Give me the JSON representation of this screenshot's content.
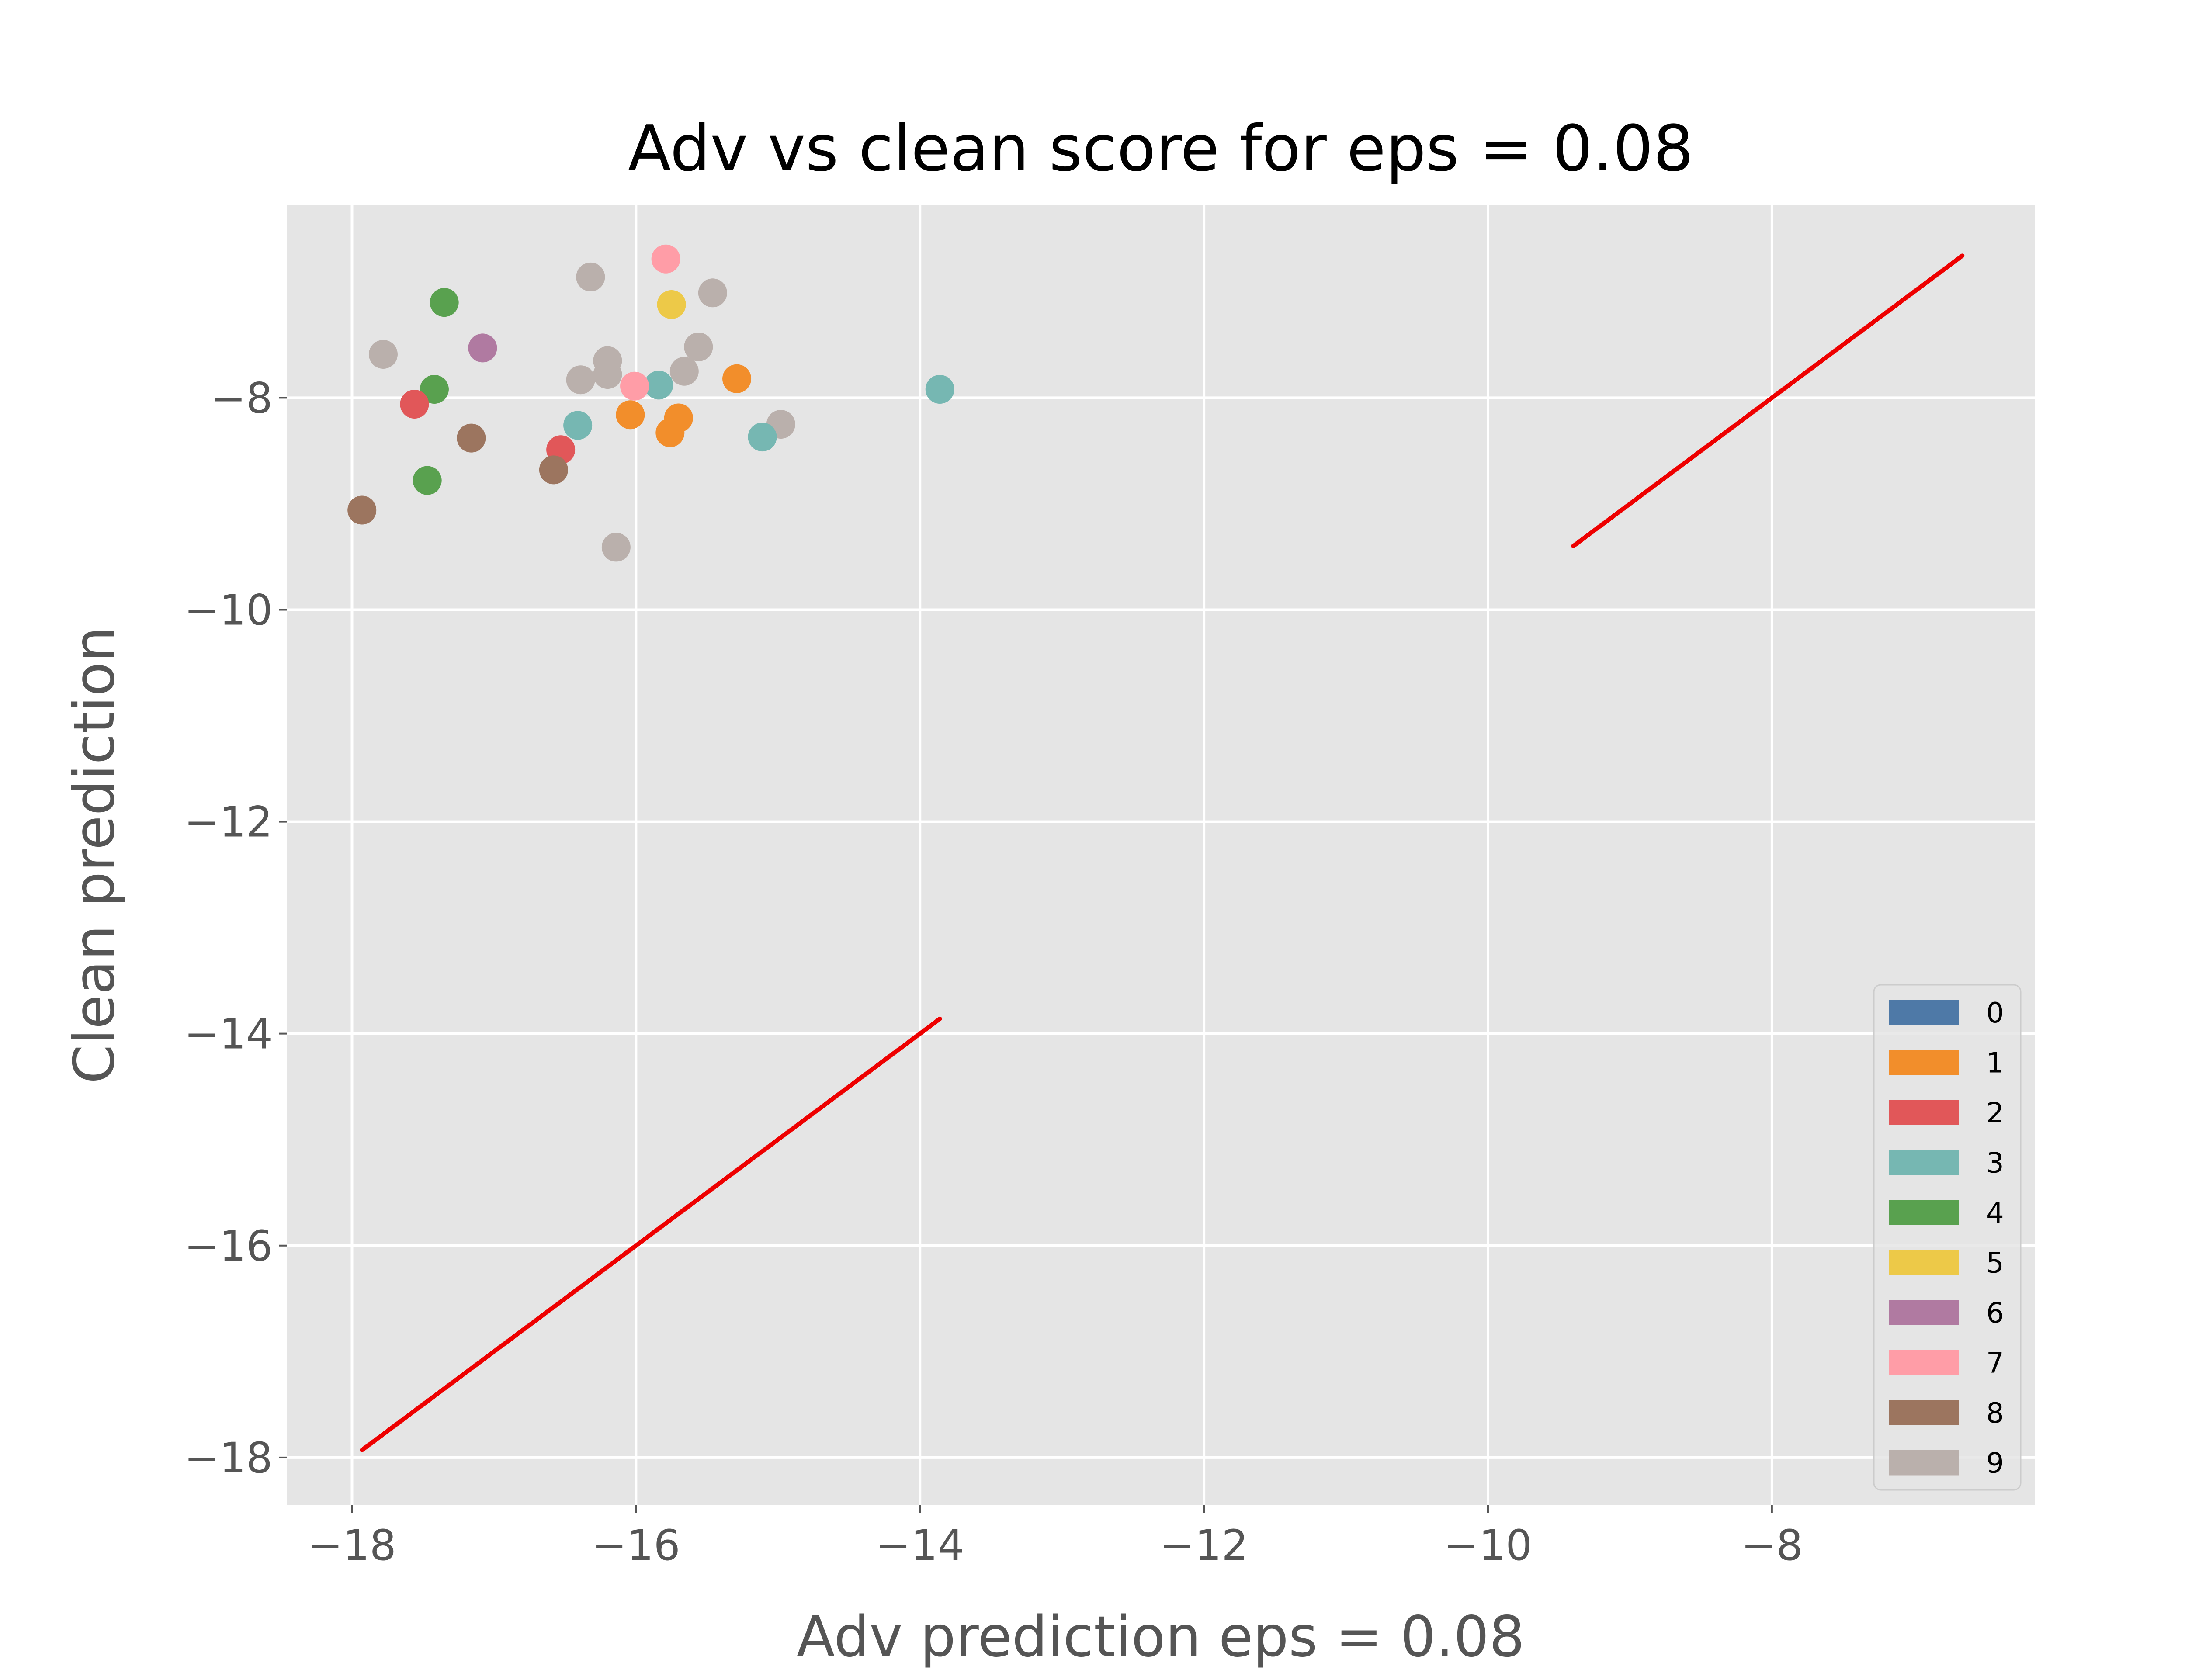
{
  "chart_data": {
    "type": "scatter",
    "title": "Adv vs clean score for eps = 0.08",
    "xlabel": "Adv prediction eps = 0.08",
    "ylabel": "Clean prediction",
    "xlim": [
      -18.46,
      -6.15
    ],
    "ylim": [
      -18.45,
      -6.18
    ],
    "xticks": [
      -18,
      -16,
      -14,
      -12,
      -10,
      -8
    ],
    "yticks": [
      -18,
      -16,
      -14,
      -12,
      -10,
      -8
    ],
    "xtick_labels": [
      "−18",
      "−16",
      "−14",
      "−12",
      "−10",
      "−8"
    ],
    "ytick_labels": [
      "−18",
      "−16",
      "−14",
      "−12",
      "−10",
      "−8"
    ],
    "grid": true,
    "background": "#e5e5e5",
    "legend_position": "lower right",
    "legend": [
      {
        "label": "0",
        "color": "#4e79a7"
      },
      {
        "label": "1",
        "color": "#f28e2b"
      },
      {
        "label": "2",
        "color": "#e15759"
      },
      {
        "label": "3",
        "color": "#76b7b2"
      },
      {
        "label": "4",
        "color": "#59a14f"
      },
      {
        "label": "5",
        "color": "#edc948"
      },
      {
        "label": "6",
        "color": "#b07aa1"
      },
      {
        "label": "7",
        "color": "#ff9da7"
      },
      {
        "label": "8",
        "color": "#9c755f"
      },
      {
        "label": "9",
        "color": "#bab0ac"
      }
    ],
    "lines": [
      {
        "color": "#ee0000",
        "points": [
          [
            -17.93,
            -17.93
          ],
          [
            -13.86,
            -13.86
          ]
        ]
      },
      {
        "color": "#ee0000",
        "points": [
          [
            -9.4,
            -9.4
          ],
          [
            -6.66,
            -6.66
          ]
        ]
      }
    ],
    "points": [
      {
        "x": -15.79,
        "y": -6.69,
        "class": "7"
      },
      {
        "x": -16.32,
        "y": -6.86,
        "class": "9"
      },
      {
        "x": -15.46,
        "y": -7.01,
        "class": "9"
      },
      {
        "x": -17.35,
        "y": -7.1,
        "class": "4"
      },
      {
        "x": -15.75,
        "y": -7.12,
        "class": "5"
      },
      {
        "x": -17.08,
        "y": -7.53,
        "class": "6"
      },
      {
        "x": -17.78,
        "y": -7.59,
        "class": "9"
      },
      {
        "x": -15.56,
        "y": -7.52,
        "class": "9"
      },
      {
        "x": -16.2,
        "y": -7.65,
        "class": "9"
      },
      {
        "x": -16.2,
        "y": -7.78,
        "class": "9"
      },
      {
        "x": -15.66,
        "y": -7.75,
        "class": "9"
      },
      {
        "x": -16.39,
        "y": -7.83,
        "class": "9"
      },
      {
        "x": -15.84,
        "y": -7.88,
        "class": "3"
      },
      {
        "x": -16.01,
        "y": -7.89,
        "class": "7"
      },
      {
        "x": -15.29,
        "y": -7.82,
        "class": "1"
      },
      {
        "x": -17.42,
        "y": -7.92,
        "class": "4"
      },
      {
        "x": -13.86,
        "y": -7.92,
        "class": "3"
      },
      {
        "x": -17.56,
        "y": -8.06,
        "class": "2"
      },
      {
        "x": -16.04,
        "y": -8.16,
        "class": "1"
      },
      {
        "x": -15.7,
        "y": -8.19,
        "class": "1"
      },
      {
        "x": -16.41,
        "y": -8.26,
        "class": "3"
      },
      {
        "x": -14.98,
        "y": -8.25,
        "class": "9"
      },
      {
        "x": -15.76,
        "y": -8.33,
        "class": "1"
      },
      {
        "x": -15.11,
        "y": -8.37,
        "class": "3"
      },
      {
        "x": -17.16,
        "y": -8.38,
        "class": "8"
      },
      {
        "x": -16.53,
        "y": -8.49,
        "class": "2"
      },
      {
        "x": -16.58,
        "y": -8.68,
        "class": "8"
      },
      {
        "x": -17.47,
        "y": -8.78,
        "class": "4"
      },
      {
        "x": -17.93,
        "y": -9.06,
        "class": "8"
      },
      {
        "x": -16.14,
        "y": -9.41,
        "class": "9"
      }
    ]
  }
}
